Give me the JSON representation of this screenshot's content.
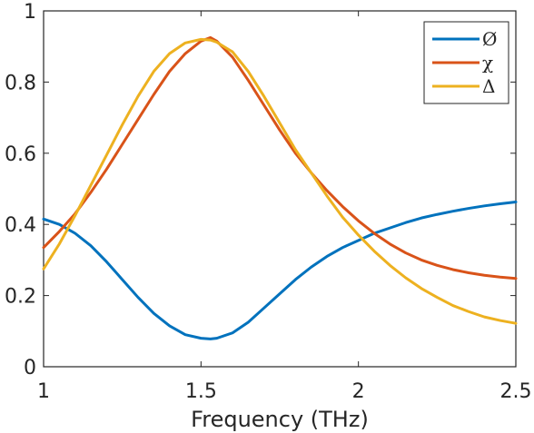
{
  "chart_data": {
    "type": "line",
    "xlabel": "Frequency (THz)",
    "ylabel": "",
    "xlim": [
      1,
      2.5
    ],
    "ylim": [
      0,
      1
    ],
    "xticks": [
      "1",
      "1.5",
      "2",
      "2.5"
    ],
    "yticks": [
      "0",
      "0.2",
      "0.4",
      "0.6",
      "0.8",
      "1"
    ],
    "grid": false,
    "legend_position": "top-right",
    "series": [
      {
        "name": "Ø",
        "color": "#0072BD",
        "x": [
          1.0,
          1.05,
          1.1,
          1.15,
          1.2,
          1.25,
          1.3,
          1.35,
          1.4,
          1.45,
          1.5,
          1.53,
          1.55,
          1.6,
          1.65,
          1.7,
          1.75,
          1.8,
          1.85,
          1.9,
          1.95,
          2.0,
          2.05,
          2.1,
          2.15,
          2.2,
          2.25,
          2.3,
          2.35,
          2.4,
          2.45,
          2.5
        ],
        "y": [
          0.415,
          0.4,
          0.375,
          0.34,
          0.295,
          0.245,
          0.195,
          0.15,
          0.115,
          0.09,
          0.08,
          0.078,
          0.08,
          0.095,
          0.125,
          0.165,
          0.205,
          0.245,
          0.28,
          0.31,
          0.335,
          0.355,
          0.375,
          0.39,
          0.405,
          0.418,
          0.428,
          0.437,
          0.445,
          0.452,
          0.458,
          0.463
        ]
      },
      {
        "name": "χ",
        "color": "#D95319",
        "x": [
          1.0,
          1.05,
          1.1,
          1.15,
          1.2,
          1.25,
          1.3,
          1.35,
          1.4,
          1.45,
          1.5,
          1.53,
          1.55,
          1.6,
          1.65,
          1.7,
          1.75,
          1.8,
          1.85,
          1.9,
          1.95,
          2.0,
          2.05,
          2.1,
          2.15,
          2.2,
          2.25,
          2.3,
          2.35,
          2.4,
          2.45,
          2.5
        ],
        "y": [
          0.335,
          0.38,
          0.43,
          0.49,
          0.555,
          0.625,
          0.695,
          0.765,
          0.83,
          0.88,
          0.915,
          0.925,
          0.915,
          0.87,
          0.805,
          0.735,
          0.665,
          0.6,
          0.545,
          0.495,
          0.45,
          0.41,
          0.375,
          0.345,
          0.32,
          0.3,
          0.285,
          0.273,
          0.264,
          0.257,
          0.252,
          0.248
        ]
      },
      {
        "name": "Δ",
        "color": "#EDB120",
        "x": [
          1.0,
          1.05,
          1.1,
          1.15,
          1.2,
          1.25,
          1.3,
          1.35,
          1.4,
          1.45,
          1.5,
          1.53,
          1.55,
          1.6,
          1.65,
          1.7,
          1.75,
          1.8,
          1.85,
          1.9,
          1.95,
          2.0,
          2.05,
          2.1,
          2.15,
          2.2,
          2.25,
          2.3,
          2.35,
          2.4,
          2.45,
          2.5
        ],
        "y": [
          0.275,
          0.345,
          0.425,
          0.51,
          0.595,
          0.68,
          0.76,
          0.83,
          0.88,
          0.91,
          0.92,
          0.918,
          0.912,
          0.885,
          0.83,
          0.76,
          0.685,
          0.61,
          0.545,
          0.48,
          0.42,
          0.37,
          0.325,
          0.285,
          0.25,
          0.22,
          0.195,
          0.172,
          0.155,
          0.14,
          0.13,
          0.122
        ]
      }
    ]
  }
}
